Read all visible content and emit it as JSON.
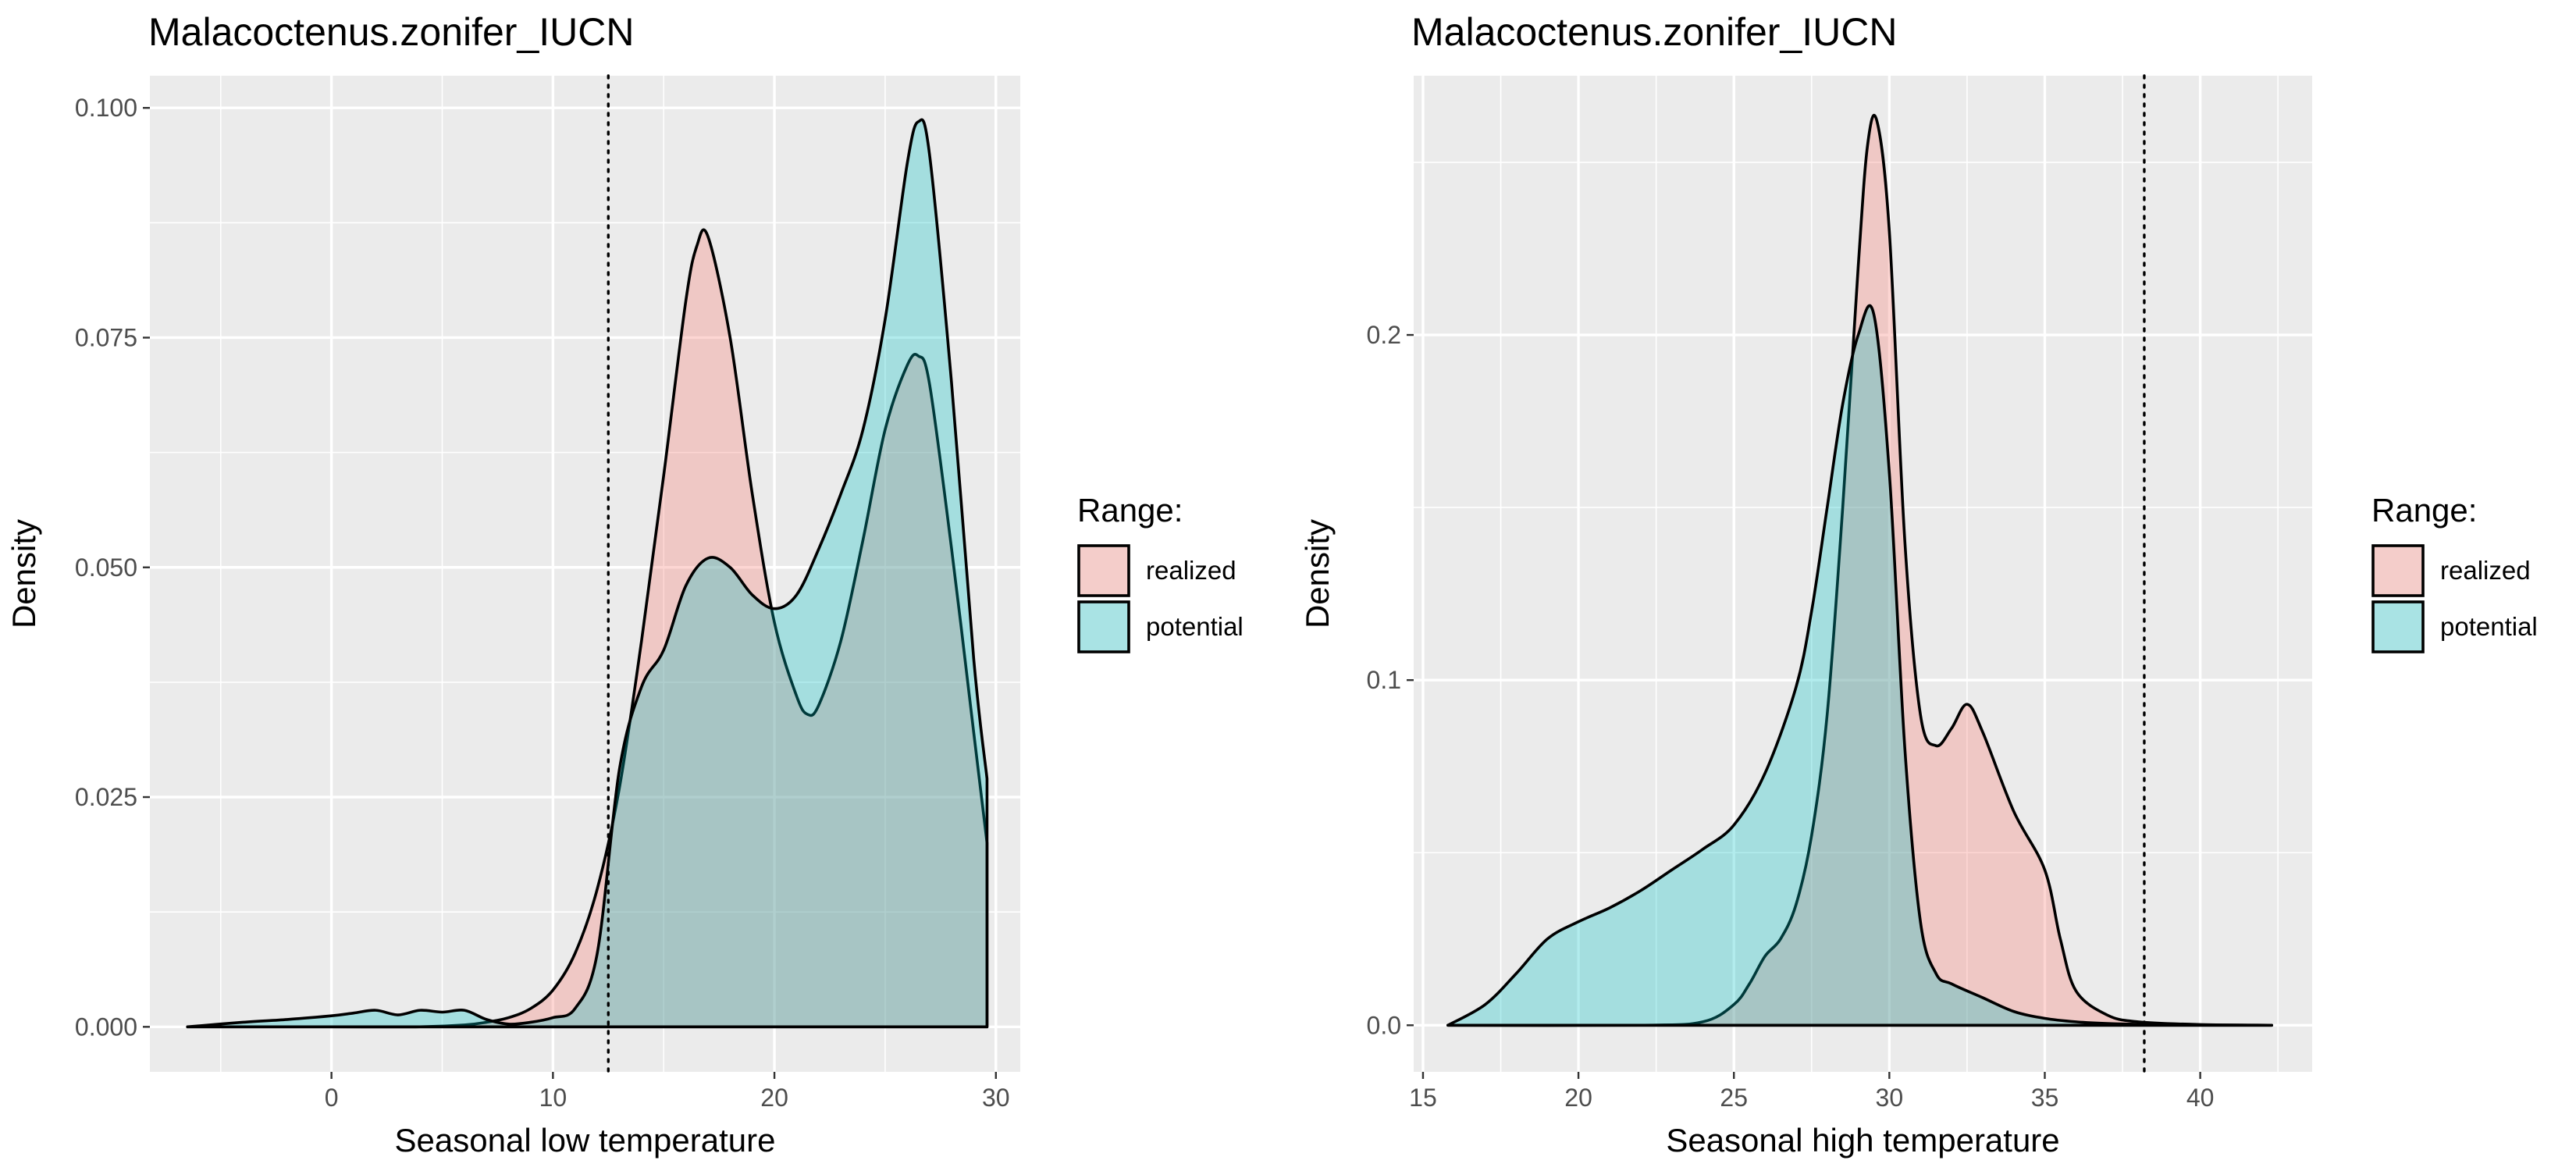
{
  "chart_data": [
    {
      "type": "area",
      "title": "Malacoctenus.zonifer_IUCN",
      "xlabel": "Seasonal low temperature",
      "ylabel": "Density",
      "xlim": [
        -8.2,
        31.1
      ],
      "ylim": [
        -0.0049,
        0.1035
      ],
      "xticks": [
        0,
        10,
        20,
        30
      ],
      "yticks": [
        0.0,
        0.025,
        0.05,
        0.075,
        0.1
      ],
      "ytick_labels": [
        "0.000",
        "0.025",
        "0.050",
        "0.075",
        "0.100"
      ],
      "vline": 12.5,
      "grid": true,
      "legend": {
        "title": "Range:",
        "position": "right",
        "entries": [
          "realized",
          "potential"
        ]
      },
      "series": [
        {
          "name": "potential",
          "color": "#00BFC4",
          "x": [
            -6.5,
            -4,
            -2,
            0,
            1,
            2,
            3,
            4,
            5,
            6,
            7,
            8,
            9,
            10,
            11,
            12,
            13,
            14,
            15,
            16,
            17,
            18,
            19,
            20,
            21,
            22,
            23,
            24,
            25,
            26,
            26.5,
            27,
            28,
            29,
            29.6
          ],
          "y": [
            0.0,
            0.0005,
            0.0008,
            0.0012,
            0.0015,
            0.0018,
            0.0013,
            0.0018,
            0.0016,
            0.0018,
            0.0008,
            0.0003,
            0.0005,
            0.001,
            0.002,
            0.008,
            0.028,
            0.037,
            0.041,
            0.048,
            0.051,
            0.05,
            0.047,
            0.0455,
            0.047,
            0.052,
            0.058,
            0.065,
            0.077,
            0.094,
            0.0985,
            0.095,
            0.07,
            0.04,
            0.027
          ]
        },
        {
          "name": "realized",
          "color": "#F8766D",
          "x": [
            -6.5,
            0,
            4,
            6,
            7,
            8,
            9,
            10,
            11,
            12,
            13,
            14,
            15,
            16,
            16.5,
            17,
            18,
            19,
            20,
            21,
            21.5,
            22,
            23,
            24,
            25,
            26,
            26.5,
            27,
            28,
            29,
            29.6
          ],
          "y": [
            0.0,
            0.0,
            0.0,
            0.0002,
            0.0005,
            0.001,
            0.002,
            0.004,
            0.008,
            0.015,
            0.026,
            0.042,
            0.06,
            0.079,
            0.085,
            0.086,
            0.075,
            0.058,
            0.044,
            0.036,
            0.034,
            0.035,
            0.042,
            0.053,
            0.065,
            0.072,
            0.073,
            0.07,
            0.052,
            0.032,
            0.02
          ]
        }
      ]
    },
    {
      "type": "area",
      "title": "Malacoctenus.zonifer_IUCN",
      "xlabel": "Seasonal high temperature",
      "ylabel": "Density",
      "xlim": [
        14.7,
        43.6
      ],
      "ylim": [
        -0.0135,
        0.2751
      ],
      "xticks": [
        15,
        20,
        25,
        30,
        35,
        40
      ],
      "yticks": [
        0.0,
        0.1,
        0.2
      ],
      "ytick_labels": [
        "0.0",
        "0.1",
        "0.2"
      ],
      "vline": 38.2,
      "grid": true,
      "legend": {
        "title": "Range:",
        "position": "right",
        "entries": [
          "realized",
          "potential"
        ]
      },
      "series": [
        {
          "name": "potential",
          "color": "#00BFC4",
          "x": [
            15.8,
            17,
            18,
            19,
            20,
            21,
            22,
            23,
            24,
            25,
            26,
            27,
            27.5,
            28,
            28.5,
            29,
            29.5,
            30,
            30.5,
            31,
            31.5,
            32,
            33,
            34,
            35,
            36,
            37,
            38,
            40,
            42.3
          ],
          "y": [
            0.0,
            0.006,
            0.015,
            0.025,
            0.03,
            0.034,
            0.039,
            0.045,
            0.051,
            0.058,
            0.073,
            0.098,
            0.12,
            0.15,
            0.18,
            0.2,
            0.206,
            0.16,
            0.08,
            0.03,
            0.015,
            0.012,
            0.008,
            0.004,
            0.002,
            0.001,
            0.0005,
            0.0003,
            0.0001,
            0.0
          ]
        },
        {
          "name": "realized",
          "color": "#F8766D",
          "x": [
            15.8,
            22,
            24,
            25,
            25.5,
            26,
            26.5,
            27,
            27.5,
            28,
            28.5,
            29,
            29.3,
            29.6,
            30,
            30.5,
            31,
            31.5,
            32,
            32.5,
            33,
            34,
            35,
            35.5,
            36,
            37,
            38,
            40,
            42.3
          ],
          "y": [
            0.0,
            0.0,
            0.001,
            0.006,
            0.012,
            0.02,
            0.025,
            0.035,
            0.055,
            0.09,
            0.15,
            0.22,
            0.255,
            0.262,
            0.23,
            0.14,
            0.09,
            0.081,
            0.086,
            0.093,
            0.085,
            0.062,
            0.045,
            0.025,
            0.01,
            0.003,
            0.001,
            0.0002,
            0.0
          ]
        }
      ]
    }
  ]
}
